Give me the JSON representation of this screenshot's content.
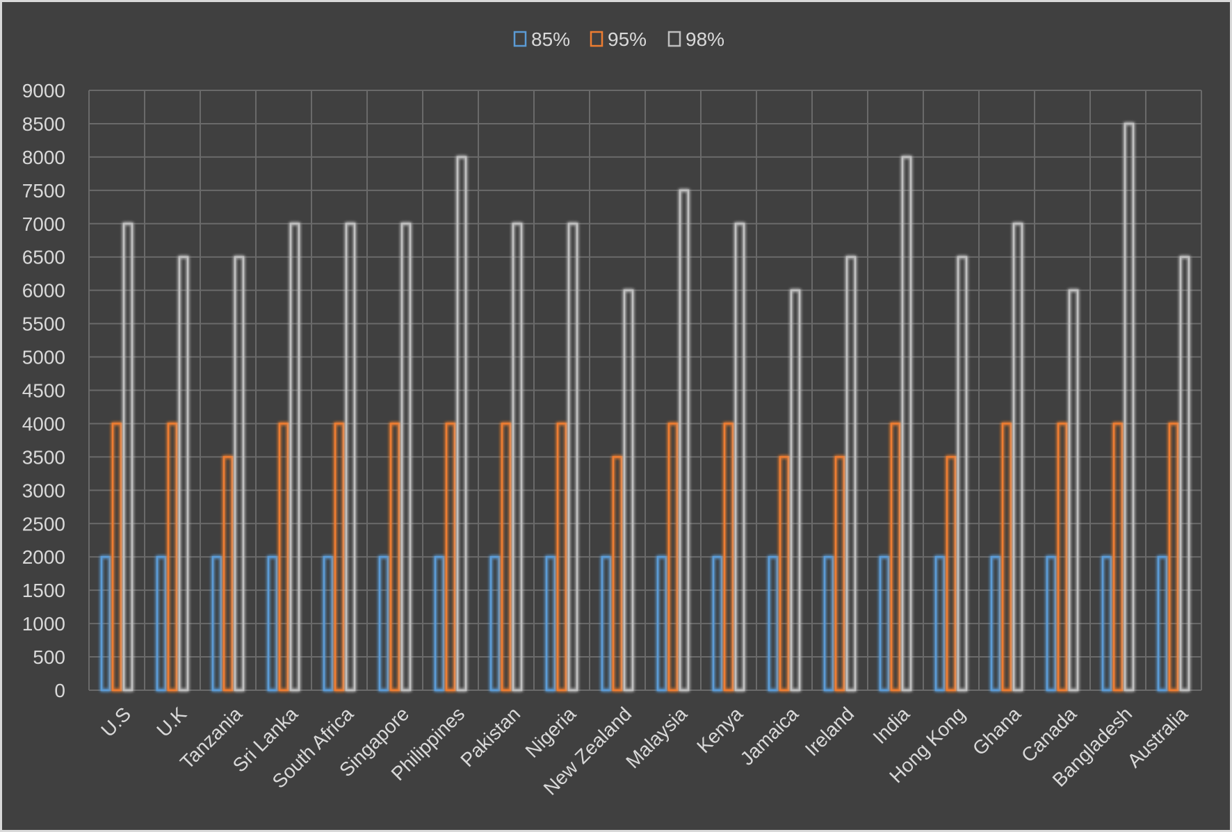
{
  "chart_data": {
    "type": "bar",
    "categories": [
      "U.S",
      "U.K",
      "Tanzania",
      "Sri Lanka",
      "South Africa",
      "Singapore",
      "Philippines",
      "Pakistan",
      "Nigeria",
      "New Zealand",
      "Malaysia",
      "Kenya",
      "Jamaica",
      "Ireland",
      "India",
      "Hong Kong",
      "Ghana",
      "Canada",
      "Bangladesh",
      "Australia"
    ],
    "series": [
      {
        "name": "85%",
        "color": "#5b9bd5",
        "values": [
          2000,
          2000,
          2000,
          2000,
          2000,
          2000,
          2000,
          2000,
          2000,
          2000,
          2000,
          2000,
          2000,
          2000,
          2000,
          2000,
          2000,
          2000,
          2000,
          2000
        ]
      },
      {
        "name": "95%",
        "color": "#ed7d31",
        "values": [
          4000,
          4000,
          3500,
          4000,
          4000,
          4000,
          4000,
          4000,
          4000,
          3500,
          4000,
          4000,
          3500,
          3500,
          4000,
          3500,
          4000,
          4000,
          4000,
          4000
        ]
      },
      {
        "name": "98%",
        "color": "#bfbfbf",
        "values": [
          7000,
          6500,
          6500,
          7000,
          7000,
          7000,
          8000,
          7000,
          7000,
          6000,
          7500,
          7000,
          6000,
          6500,
          8000,
          6500,
          7000,
          6000,
          8500,
          6500
        ]
      }
    ],
    "yticks": [
      "0",
      "500",
      "1000",
      "1500",
      "2000",
      "2500",
      "3000",
      "3500",
      "4000",
      "4500",
      "5000",
      "5500",
      "6000",
      "6500",
      "7000",
      "7500",
      "8000",
      "8500",
      "9000"
    ],
    "ylim": [
      0,
      9000
    ],
    "grid": true,
    "legend_position": "top-center",
    "background": "#404040",
    "grid_color": "#6a6a6a",
    "text_color": "#d9d9d9"
  }
}
